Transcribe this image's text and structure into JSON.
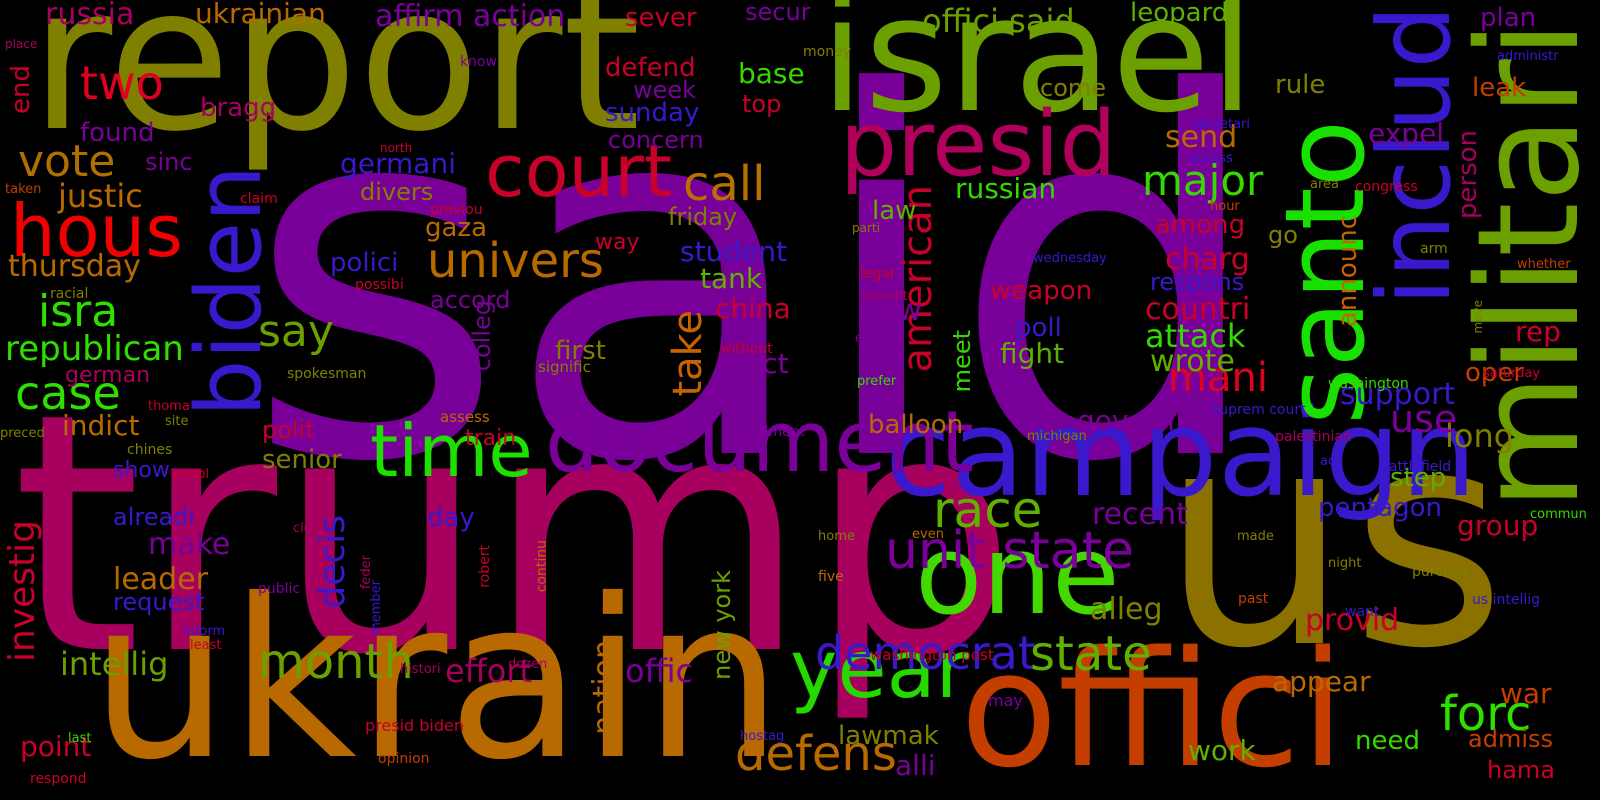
{
  "background": "#000000",
  "words": [
    {
      "text": "said",
      "color": "#780099"
    },
    {
      "text": "trump",
      "color": "#a8005f"
    },
    {
      "text": "report",
      "color": "#808000"
    },
    {
      "text": "israel",
      "color": "#6c9f00"
    },
    {
      "text": "us",
      "color": "#8a7100"
    },
    {
      "text": "ukrain",
      "color": "#b86a00"
    },
    {
      "text": "offici",
      "color": "#c43e00"
    },
    {
      "text": "militari",
      "color": "#6c9f00"
    },
    {
      "text": "campaign",
      "color": "#3a18cc"
    },
    {
      "text": "biden",
      "color": "#3a18cc"
    },
    {
      "text": "presid",
      "color": "#b0005b"
    },
    {
      "text": "santo",
      "color": "#18e000"
    },
    {
      "text": "includ",
      "color": "#3a18cc"
    },
    {
      "text": "one",
      "color": "#43d800"
    },
    {
      "text": "document",
      "color": "#7a0099"
    },
    {
      "text": "court",
      "color": "#c8002a"
    },
    {
      "text": "time",
      "color": "#1ee000"
    },
    {
      "text": "year",
      "color": "#27d800"
    },
    {
      "text": "hous",
      "color": "#f00000"
    },
    {
      "text": "democrat",
      "color": "#3a18cc"
    },
    {
      "text": "unit state",
      "color": "#7a0099"
    },
    {
      "text": "month",
      "color": "#6c9f00"
    },
    {
      "text": "univers",
      "color": "#b86a00"
    },
    {
      "text": "defens",
      "color": "#b86a00"
    },
    {
      "text": "state",
      "color": "#5fb000"
    },
    {
      "text": "forc",
      "color": "#2ee000"
    },
    {
      "text": "race",
      "color": "#5fb000"
    },
    {
      "text": "american",
      "color": "#c8002a"
    },
    {
      "text": "take",
      "color": "#c86400"
    },
    {
      "text": "say",
      "color": "#6c9f00"
    },
    {
      "text": "call",
      "color": "#b87000"
    },
    {
      "text": "major",
      "color": "#35d800"
    },
    {
      "text": "mani",
      "color": "#e00020"
    },
    {
      "text": "isra",
      "color": "#2ee000"
    },
    {
      "text": "case",
      "color": "#2ee000"
    },
    {
      "text": "vote",
      "color": "#b07000"
    },
    {
      "text": "two",
      "color": "#e00020"
    },
    {
      "text": "investig",
      "color": "#c8002a"
    },
    {
      "text": "decis",
      "color": "#3a18cc"
    },
    {
      "text": "republican",
      "color": "#2ee000"
    },
    {
      "text": "thursday",
      "color": "#b86a00"
    },
    {
      "text": "justic",
      "color": "#b86a00"
    },
    {
      "text": "intellig",
      "color": "#6c9f00"
    },
    {
      "text": "effort",
      "color": "#a8005f"
    },
    {
      "text": "offic",
      "color": "#7a0099"
    },
    {
      "text": "nation",
      "color": "#b86a00"
    },
    {
      "text": "new york",
      "color": "#6c9f00"
    },
    {
      "text": "lawmak",
      "color": "#808000"
    },
    {
      "text": "alli",
      "color": "#7a0099"
    },
    {
      "text": "war",
      "color": "#c43e00"
    },
    {
      "text": "admiss",
      "color": "#c43e00"
    },
    {
      "text": "hama",
      "color": "#c8002a"
    },
    {
      "text": "appear",
      "color": "#b86a00"
    },
    {
      "text": "provid",
      "color": "#c8002a"
    },
    {
      "text": "alleg",
      "color": "#808000"
    },
    {
      "text": "group",
      "color": "#c8002a"
    },
    {
      "text": "pentagon",
      "color": "#3a18cc"
    },
    {
      "text": "step",
      "color": "#5fb000"
    },
    {
      "text": "recent",
      "color": "#7a0099"
    },
    {
      "text": "govern",
      "color": "#7a0099"
    },
    {
      "text": "balloon",
      "color": "#b86a00"
    },
    {
      "text": "senior",
      "color": "#808000"
    },
    {
      "text": "polit",
      "color": "#c8002a"
    },
    {
      "text": "indict",
      "color": "#b86a00"
    },
    {
      "text": "leader",
      "color": "#b86a00"
    },
    {
      "text": "make",
      "color": "#7a0099"
    },
    {
      "text": "alreadi",
      "color": "#3a18cc"
    },
    {
      "text": "request",
      "color": "#3a18cc"
    },
    {
      "text": "point",
      "color": "#c8002a"
    },
    {
      "text": "work",
      "color": "#5fb000"
    },
    {
      "text": "need",
      "color": "#35d800"
    },
    {
      "text": "long",
      "color": "#808000"
    },
    {
      "text": "use",
      "color": "#7a0099"
    },
    {
      "text": "support",
      "color": "#3a18cc"
    },
    {
      "text": "wrote",
      "color": "#5fb000"
    },
    {
      "text": "attack",
      "color": "#35d800"
    },
    {
      "text": "countri",
      "color": "#c8002a"
    },
    {
      "text": "charg",
      "color": "#c8002a"
    },
    {
      "text": "among",
      "color": "#c8002a"
    },
    {
      "text": "respons",
      "color": "#3a18cc"
    },
    {
      "text": "rep",
      "color": "#c8002a"
    },
    {
      "text": "oper",
      "color": "#c43e00"
    },
    {
      "text": "announc",
      "color": "#c86400"
    },
    {
      "text": "person",
      "color": "#a8005f"
    },
    {
      "text": "expel",
      "color": "#7a0099"
    },
    {
      "text": "send",
      "color": "#b86a00"
    },
    {
      "text": "rule",
      "color": "#808000"
    },
    {
      "text": "go",
      "color": "#808000"
    },
    {
      "text": "leak",
      "color": "#c43e00"
    },
    {
      "text": "plan",
      "color": "#7a0099"
    },
    {
      "text": "leopard",
      "color": "#5fb000"
    },
    {
      "text": "offici said",
      "color": "#6c9f00"
    },
    {
      "text": "come",
      "color": "#808000"
    },
    {
      "text": "russian",
      "color": "#35d800"
    },
    {
      "text": "law",
      "color": "#5fb000"
    },
    {
      "text": "new",
      "color": "#7a0099"
    },
    {
      "text": "poll",
      "color": "#3a18cc"
    },
    {
      "text": "fight",
      "color": "#5fb000"
    },
    {
      "text": "meet",
      "color": "#35d800"
    },
    {
      "text": "elect",
      "color": "#7a0099"
    },
    {
      "text": "china",
      "color": "#c8002a"
    },
    {
      "text": "tank",
      "color": "#5fb000"
    },
    {
      "text": "student",
      "color": "#3a18cc"
    },
    {
      "text": "weapon",
      "color": "#c8002a"
    },
    {
      "text": "friday",
      "color": "#808000"
    },
    {
      "text": "first",
      "color": "#808000"
    },
    {
      "text": "accord",
      "color": "#7a0099"
    },
    {
      "text": "gaza",
      "color": "#b86a00"
    },
    {
      "text": "polici",
      "color": "#3a18cc"
    },
    {
      "text": "divers",
      "color": "#808000"
    },
    {
      "text": "germani",
      "color": "#3a18cc"
    },
    {
      "text": "sinc",
      "color": "#7a0099"
    },
    {
      "text": "found",
      "color": "#7a0099"
    },
    {
      "text": "bragg",
      "color": "#a8005f"
    },
    {
      "text": "end",
      "color": "#c8002a"
    },
    {
      "text": "russia",
      "color": "#a8005f"
    },
    {
      "text": "ukrainian",
      "color": "#b86a00"
    },
    {
      "text": "affirm action",
      "color": "#7a0099"
    },
    {
      "text": "sever",
      "color": "#c8002a"
    },
    {
      "text": "secur",
      "color": "#7a0099"
    },
    {
      "text": "defend",
      "color": "#c8002a"
    },
    {
      "text": "week",
      "color": "#7a0099"
    },
    {
      "text": "base",
      "color": "#35d800"
    },
    {
      "text": "top",
      "color": "#c8002a"
    },
    {
      "text": "sunday",
      "color": "#3a18cc"
    },
    {
      "text": "concern",
      "color": "#7a0099"
    },
    {
      "text": "colleg",
      "color": "#7a0099"
    },
    {
      "text": "train",
      "color": "#c8002a"
    },
    {
      "text": "day",
      "color": "#3a18cc"
    },
    {
      "text": "show",
      "color": "#3a18cc"
    },
    {
      "text": "german",
      "color": "#a8005f"
    },
    {
      "text": "way",
      "color": "#c8002a"
    },
    {
      "text": "money",
      "color": "#808000"
    },
    {
      "text": "know",
      "color": "#7a0099"
    },
    {
      "text": "place",
      "color": "#a8005f"
    },
    {
      "text": "racial",
      "color": "#808000"
    },
    {
      "text": "taken",
      "color": "#c43e00"
    },
    {
      "text": "claim",
      "color": "#c8002a"
    },
    {
      "text": "previou",
      "color": "#c8002a"
    },
    {
      "text": "possibi",
      "color": "#c8002a"
    },
    {
      "text": "spokesman",
      "color": "#808000"
    },
    {
      "text": "signific",
      "color": "#808000"
    },
    {
      "text": "without",
      "color": "#c8002a"
    },
    {
      "text": "thoma",
      "color": "#c8002a"
    },
    {
      "text": "site",
      "color": "#808000"
    },
    {
      "text": "preced",
      "color": "#808000"
    },
    {
      "text": "chines",
      "color": "#808000"
    },
    {
      "text": "peopl",
      "color": "#c8002a"
    },
    {
      "text": "assess",
      "color": "#b86a00"
    },
    {
      "text": "statement",
      "color": "#7a0099"
    },
    {
      "text": "clear",
      "color": "#a8005f"
    },
    {
      "text": "public",
      "color": "#7a0099"
    },
    {
      "text": "feder",
      "color": "#a8005f"
    },
    {
      "text": "inform",
      "color": "#3a18cc"
    },
    {
      "text": "least",
      "color": "#c8002a"
    },
    {
      "text": "member",
      "color": "#3a18cc"
    },
    {
      "text": "histori",
      "color": "#a8005f"
    },
    {
      "text": "dozen",
      "color": "#a8005f"
    },
    {
      "text": "continu",
      "color": "#b86a00"
    },
    {
      "text": "robert",
      "color": "#c8002a"
    },
    {
      "text": "last",
      "color": "#35d800"
    },
    {
      "text": "respond",
      "color": "#c8002a"
    },
    {
      "text": "opinion",
      "color": "#c43e00"
    },
    {
      "text": "presid biden",
      "color": "#c8002a"
    },
    {
      "text": "washington post",
      "color": "#c8002a"
    },
    {
      "text": "home",
      "color": "#808000"
    },
    {
      "text": "five",
      "color": "#b86a00"
    },
    {
      "text": "even",
      "color": "#b86a00"
    },
    {
      "text": "may",
      "color": "#7a0099"
    },
    {
      "text": "hostag",
      "color": "#3a18cc"
    },
    {
      "text": "north",
      "color": "#c8002a"
    },
    {
      "text": "parti",
      "color": "#808000"
    },
    {
      "text": "legal",
      "color": "#c8002a"
    },
    {
      "text": "benefit",
      "color": "#a8005f"
    },
    {
      "text": "expect",
      "color": "#7a0099"
    },
    {
      "text": "prefer",
      "color": "#35d800"
    },
    {
      "text": "michigan",
      "color": "#808000"
    },
    {
      "text": "washington",
      "color": "#35d800"
    },
    {
      "text": "secretari",
      "color": "#3a18cc"
    },
    {
      "text": "access",
      "color": "#3a18cc"
    },
    {
      "text": "hour",
      "color": "#c43e00"
    },
    {
      "text": "area",
      "color": "#808000"
    },
    {
      "text": "congress",
      "color": "#c8002a"
    },
    {
      "text": "wednesday",
      "color": "#3a18cc"
    },
    {
      "text": "suprem court",
      "color": "#3a18cc"
    },
    {
      "text": "palestinian",
      "color": "#a8005f"
    },
    {
      "text": "ad",
      "color": "#3a18cc"
    },
    {
      "text": "battlefield",
      "color": "#3a18cc"
    },
    {
      "text": "made",
      "color": "#808000"
    },
    {
      "text": "night",
      "color": "#808000"
    },
    {
      "text": "purchas",
      "color": "#808000"
    },
    {
      "text": "want",
      "color": "#3a18cc"
    },
    {
      "text": "past",
      "color": "#c43e00"
    },
    {
      "text": "us intellig",
      "color": "#3a18cc"
    },
    {
      "text": "commun",
      "color": "#35d800"
    },
    {
      "text": "administr",
      "color": "#3a18cc"
    },
    {
      "text": "arm",
      "color": "#808000"
    },
    {
      "text": "move",
      "color": "#808000"
    },
    {
      "text": "whether",
      "color": "#c43e00"
    },
    {
      "text": "saturday",
      "color": "#c8002a"
    }
  ]
}
